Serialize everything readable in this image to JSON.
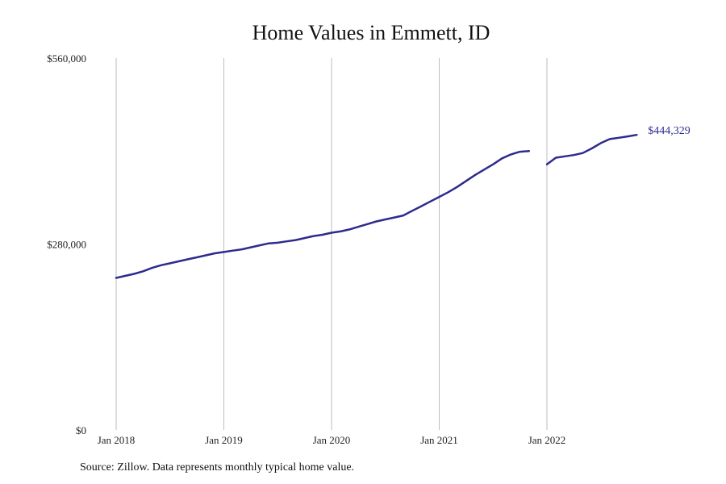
{
  "chart_data": {
    "type": "line",
    "title": "Home Values in Emmett, ID",
    "xlabel": "",
    "ylabel": "",
    "ylim": [
      0,
      560000
    ],
    "y_ticks": [
      "$0",
      "$280,000",
      "$560,000"
    ],
    "y_tick_values": [
      0,
      280000,
      560000
    ],
    "x_ticks": [
      "Jan 2018",
      "Jan 2019",
      "Jan 2020",
      "Jan 2021",
      "Jan 2022"
    ],
    "x_tick_values": [
      "2018-01",
      "2019-01",
      "2020-01",
      "2021-01",
      "2022-01"
    ],
    "grid": "vertical",
    "line_color": "#2e2b8f",
    "end_label": "$444,329",
    "series": [
      {
        "segments": [
          {
            "x": [
              "2018-01",
              "2018-02",
              "2018-03",
              "2018-04",
              "2018-05",
              "2018-06",
              "2018-07",
              "2018-08",
              "2018-09",
              "2018-10",
              "2018-11",
              "2018-12",
              "2019-01",
              "2019-02",
              "2019-03",
              "2019-04",
              "2019-05",
              "2019-06",
              "2019-07",
              "2019-08",
              "2019-09",
              "2019-10",
              "2019-11",
              "2019-12",
              "2020-01",
              "2020-02",
              "2020-03",
              "2020-04",
              "2020-05",
              "2020-06",
              "2020-07",
              "2020-08",
              "2020-09",
              "2020-10",
              "2020-11",
              "2020-12",
              "2021-01",
              "2021-02",
              "2021-03",
              "2021-04",
              "2021-05",
              "2021-06",
              "2021-07",
              "2021-08",
              "2021-09",
              "2021-10",
              "2021-11"
            ],
            "y": [
              229000,
              232000,
              235000,
              239000,
              244000,
              248000,
              251000,
              254000,
              257000,
              260000,
              263000,
              266000,
              268000,
              270000,
              272000,
              275000,
              278000,
              281000,
              282000,
              284000,
              286000,
              289000,
              292000,
              294000,
              297000,
              299000,
              302000,
              306000,
              310000,
              314000,
              317000,
              320000,
              323000,
              330000,
              337000,
              344000,
              351000,
              358000,
              366000,
              375000,
              384000,
              392000,
              400000,
              409000,
              415000,
              419000,
              420000
            ]
          },
          {
            "x": [
              "2022-01",
              "2022-02",
              "2022-03",
              "2022-04",
              "2022-05",
              "2022-06",
              "2022-07",
              "2022-08",
              "2022-09",
              "2022-10",
              "2022-11"
            ],
            "y": [
              400000,
              410000,
              412000,
              414000,
              417000,
              424000,
              432000,
              438000,
              440000,
              442000,
              444329
            ]
          }
        ]
      }
    ]
  },
  "footer": {
    "source": "Source: Zillow. Data represents monthly typical home value."
  }
}
